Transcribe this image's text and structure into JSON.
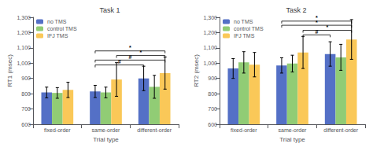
{
  "chart_data": [
    {
      "type": "bar",
      "title": "Task 1",
      "xlabel": "Trial type",
      "ylabel": "RT1 (msec)",
      "categories": [
        "fixed-order",
        "same-order",
        "different-order"
      ],
      "series": [
        {
          "name": "no TMS",
          "values": [
            808,
            815,
            900
          ],
          "errors": [
            35,
            40,
            80
          ]
        },
        {
          "name": "control TMS",
          "values": [
            805,
            808,
            845
          ],
          "errors": [
            35,
            35,
            75
          ]
        },
        {
          "name": "IFJ TMS",
          "values": [
            825,
            893,
            935
          ],
          "errors": [
            50,
            110,
            105
          ]
        }
      ],
      "ylim": [
        600,
        1300
      ],
      "yticks": [
        600,
        700,
        800,
        900,
        1000,
        1100,
        1200,
        1300
      ],
      "grid": false,
      "legend": "upper left",
      "annotations": [
        {
          "text": "#",
          "y": 988,
          "from": {
            "category": "same-order",
            "series": "no TMS"
          },
          "to": {
            "category": "different-order",
            "series": "no TMS"
          }
        },
        {
          "text": "*",
          "y": 1050,
          "from": {
            "category": "same-order",
            "series": "IFJ TMS"
          },
          "to": {
            "category": "different-order",
            "series": "IFJ TMS"
          }
        },
        {
          "text": "#",
          "y": 1020,
          "from": {
            "category": "same-order",
            "series": "no TMS"
          },
          "to": {
            "category": "different-order",
            "series": "IFJ TMS"
          }
        },
        {
          "text": "*",
          "y": 1080,
          "from": {
            "category": "same-order",
            "series": "no TMS"
          },
          "to": {
            "category": "different-order",
            "series": "IFJ TMS"
          }
        }
      ]
    },
    {
      "type": "bar",
      "title": "Task 2",
      "xlabel": "Trial type",
      "ylabel": "RT2 (msec)",
      "categories": [
        "fixed-order",
        "same-order",
        "different-order"
      ],
      "series": [
        {
          "name": "no TMS",
          "values": [
            965,
            985,
            1060
          ],
          "errors": [
            65,
            50,
            80
          ]
        },
        {
          "name": "control TMS",
          "values": [
            1005,
            997,
            1038
          ],
          "errors": [
            70,
            55,
            85
          ]
        },
        {
          "name": "IFJ TMS",
          "values": [
            990,
            1070,
            1155
          ],
          "errors": [
            80,
            105,
            130
          ]
        }
      ],
      "ylim": [
        600,
        1300
      ],
      "yticks": [
        600,
        700,
        800,
        900,
        1000,
        1100,
        1200,
        1300
      ],
      "grid": false,
      "legend": "upper left",
      "annotations": [
        {
          "text": "#",
          "y": 1185,
          "from": {
            "category": "same-order",
            "series": "IFJ TMS"
          },
          "to": {
            "category": "different-order",
            "series": "no TMS"
          }
        },
        {
          "text": "*",
          "y": 1215,
          "from": {
            "category": "same-order",
            "series": "IFJ TMS"
          },
          "to": {
            "category": "different-order",
            "series": "IFJ TMS"
          }
        },
        {
          "text": "*",
          "y": 1248,
          "from": {
            "category": "same-order",
            "series": "no TMS"
          },
          "to": {
            "category": "different-order",
            "series": "IFJ TMS"
          }
        },
        {
          "text": "*",
          "y": 1275,
          "from": {
            "category": "same-order",
            "series": "no TMS"
          },
          "to": {
            "category": "different-order",
            "series": "IFJ TMS"
          }
        }
      ]
    }
  ]
}
